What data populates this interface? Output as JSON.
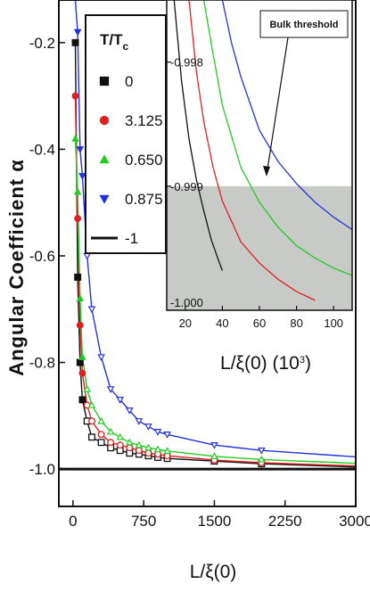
{
  "chart_data": {
    "type": "scatter",
    "main": {
      "xlabel": "L/ξ(0)",
      "ylabel": "Angular Coefficient  α",
      "xlim": [
        -150,
        3000
      ],
      "ylim": [
        -1.07,
        -0.12
      ],
      "xticks": [
        0,
        750,
        1500,
        2250,
        3000
      ],
      "xtick_labels": [
        "0",
        "750",
        "1500",
        "2250",
        "3000"
      ],
      "yticks": [
        -1.0,
        -0.8,
        -0.6,
        -0.4,
        -0.2
      ],
      "ytick_labels": [
        "-1.0",
        "-0.8",
        "-0.6",
        "-0.4",
        "-0.2"
      ],
      "legend_title": "T/T",
      "legend_title_sub": "c",
      "legend_position": "top-left",
      "series": [
        {
          "name": "0",
          "marker": "square",
          "color": "#111111",
          "x": [
            25,
            50,
            75,
            100,
            150,
            200,
            300,
            400,
            500,
            600,
            700,
            800,
            900,
            1000,
            1500,
            2000
          ],
          "y": [
            -0.2,
            -0.64,
            -0.8,
            -0.87,
            -0.91,
            -0.94,
            -0.95,
            -0.96,
            -0.965,
            -0.97,
            -0.972,
            -0.975,
            -0.978,
            -0.98,
            -0.985,
            -0.99
          ]
        },
        {
          "name": "3.125",
          "marker": "circle",
          "color": "#e02020",
          "x": [
            25,
            50,
            75,
            100,
            150,
            200,
            300,
            400,
            500,
            600,
            700,
            800,
            900,
            1000,
            1500,
            2000
          ],
          "y": [
            -0.3,
            -0.53,
            -0.73,
            -0.82,
            -0.88,
            -0.91,
            -0.935,
            -0.95,
            -0.955,
            -0.96,
            -0.965,
            -0.97,
            -0.972,
            -0.975,
            -0.983,
            -0.988
          ]
        },
        {
          "name": "0.650",
          "marker": "triangle-up",
          "color": "#22cc22",
          "x": [
            25,
            50,
            75,
            100,
            150,
            200,
            300,
            400,
            500,
            600,
            700,
            800,
            900,
            1000,
            1500,
            2000
          ],
          "y": [
            -0.38,
            -0.48,
            -0.68,
            -0.79,
            -0.85,
            -0.88,
            -0.91,
            -0.93,
            -0.94,
            -0.95,
            -0.955,
            -0.96,
            -0.963,
            -0.966,
            -0.976,
            -0.982
          ]
        },
        {
          "name": "0.875",
          "marker": "triangle-down",
          "color": "#2233dd",
          "x": [
            25,
            50,
            75,
            100,
            150,
            200,
            300,
            400,
            500,
            600,
            700,
            800,
            900,
            1000,
            1500,
            2000
          ],
          "y": [
            -0.12,
            -0.18,
            -0.4,
            -0.45,
            -0.6,
            -0.7,
            -0.79,
            -0.85,
            -0.87,
            -0.89,
            -0.91,
            -0.92,
            -0.93,
            -0.935,
            -0.955,
            -0.965
          ]
        },
        {
          "name": "-1",
          "marker": "line",
          "color": "#111111",
          "x": [
            -150,
            3000
          ],
          "y": [
            -1.0,
            -1.0
          ]
        }
      ]
    },
    "inset": {
      "xlabel": "L/ξ(0) (10",
      "xlabel_sup": "3",
      "xlabel_end": ")",
      "xlim": [
        10,
        110
      ],
      "ylim": [
        -1.0,
        -0.9975
      ],
      "xticks": [
        20,
        40,
        60,
        80,
        100
      ],
      "xtick_labels": [
        "20",
        "40",
        "60",
        "80",
        "100"
      ],
      "yticks": [
        -1.0,
        -0.999,
        -0.998
      ],
      "ytick_labels": [
        "-1.000",
        "-0.999",
        "-0.998"
      ],
      "shaded_region": {
        "y_from": -1.0,
        "y_to": -0.999,
        "color": "#c8cac8"
      },
      "annotation": "Bulk threshold",
      "series": [
        {
          "name": "0",
          "color": "#111111",
          "x": [
            14,
            18,
            22,
            26,
            30,
            34,
            38,
            40
          ],
          "y": [
            -0.9975,
            -0.99815,
            -0.99862,
            -0.99895,
            -0.9992,
            -0.99943,
            -0.9996,
            -0.99968
          ]
        },
        {
          "name": "3.125",
          "color": "#e02020",
          "x": [
            22,
            26,
            30,
            35,
            40,
            50,
            60,
            70,
            80,
            90
          ],
          "y": [
            -0.9975,
            -0.99808,
            -0.99848,
            -0.99885,
            -0.99912,
            -0.99945,
            -0.99962,
            -0.99975,
            -0.99985,
            -0.99992
          ]
        },
        {
          "name": "0.650",
          "color": "#22cc22",
          "x": [
            30,
            34,
            40,
            50,
            60,
            70,
            80,
            90,
            100,
            110
          ],
          "y": [
            -0.9975,
            -0.99785,
            -0.99835,
            -0.99885,
            -0.99913,
            -0.99933,
            -0.99948,
            -0.99958,
            -0.99966,
            -0.99972
          ]
        },
        {
          "name": "0.875",
          "color": "#2233dd",
          "x": [
            40,
            45,
            50,
            60,
            70,
            80,
            90,
            100,
            110
          ],
          "y": [
            -0.9975,
            -0.99785,
            -0.99812,
            -0.99855,
            -0.9988,
            -0.99898,
            -0.99913,
            -0.99925,
            -0.99935
          ]
        }
      ]
    }
  }
}
